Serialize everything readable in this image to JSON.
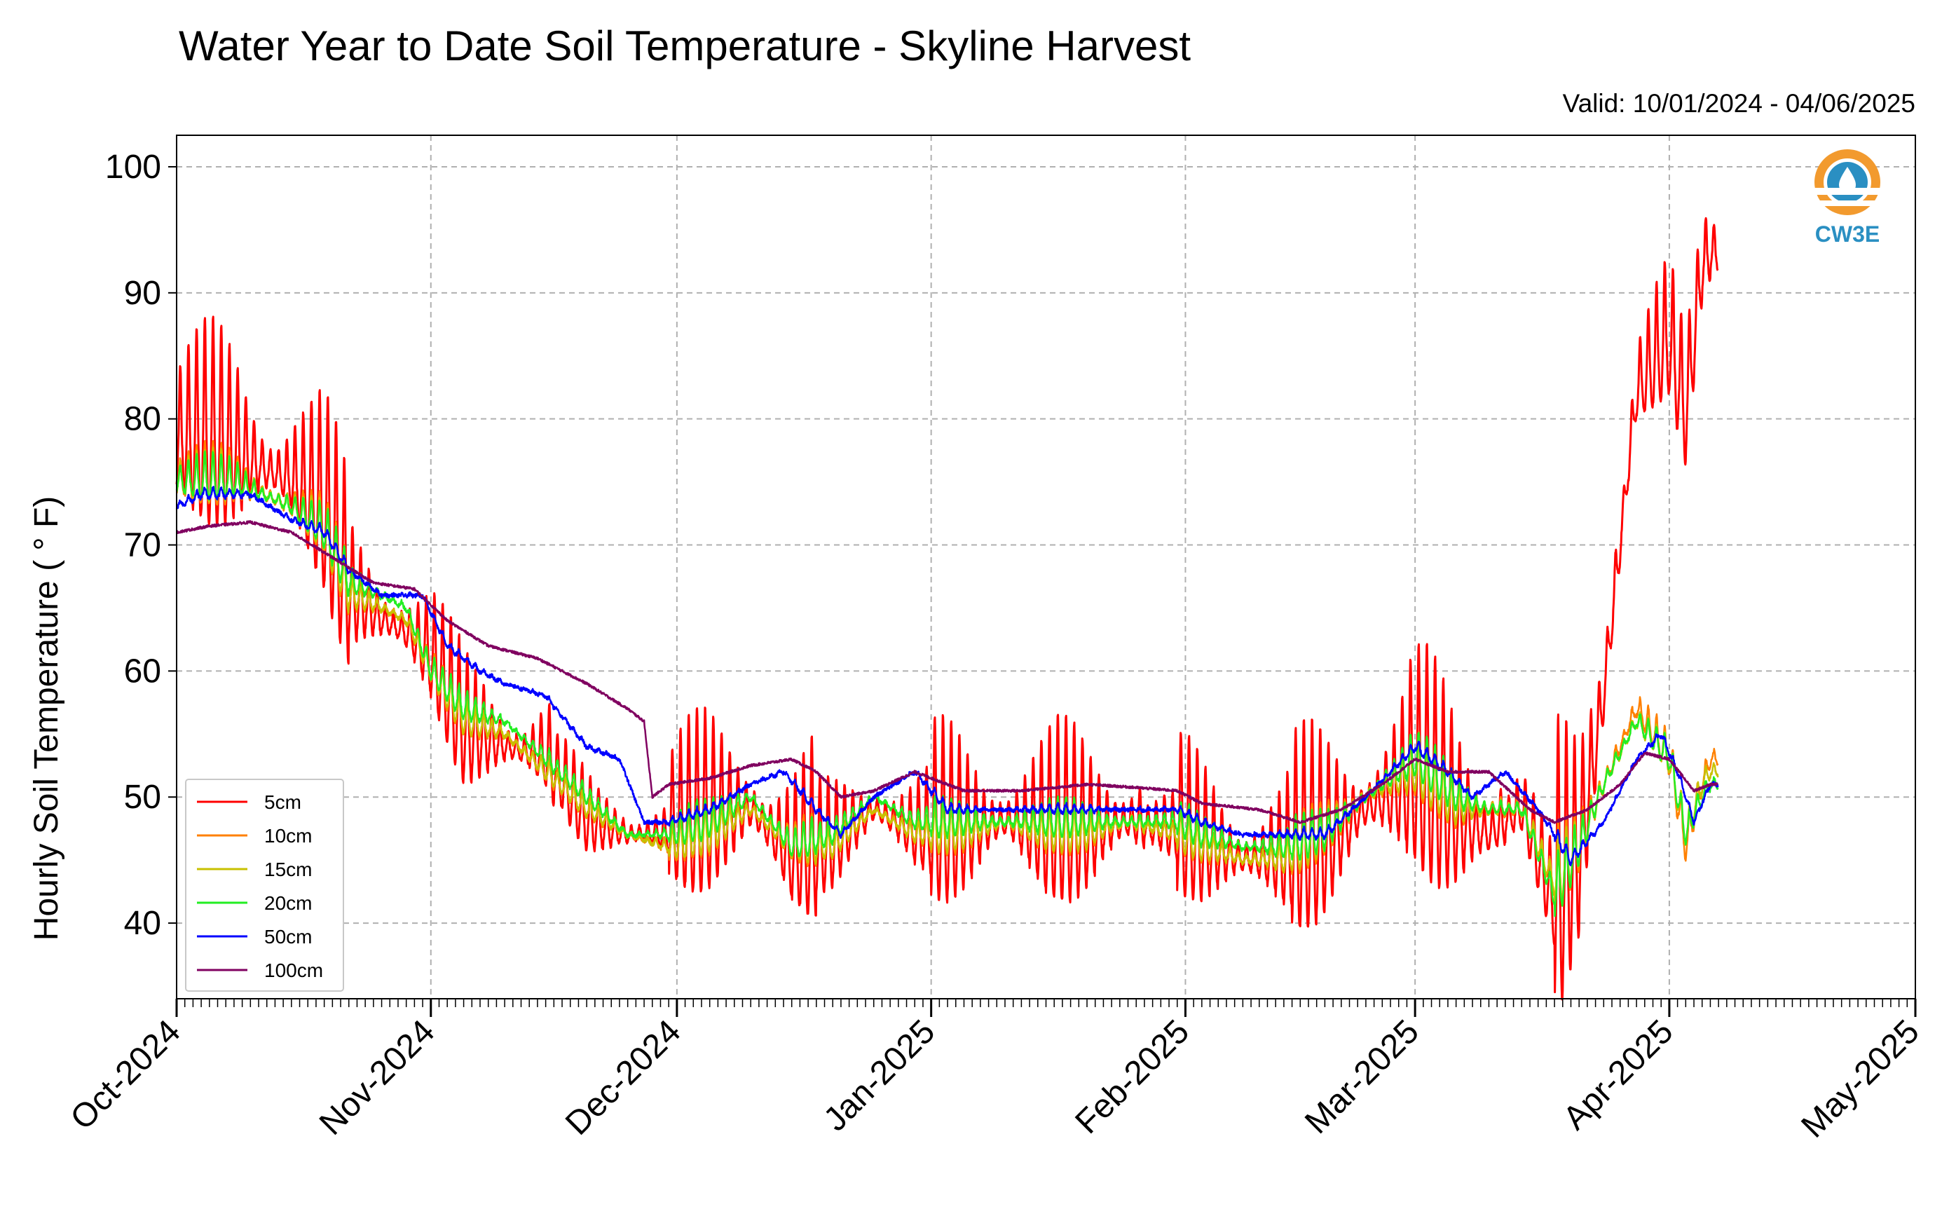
{
  "chart_data": {
    "type": "line",
    "title": "Water Year to Date Soil Temperature - Skyline Harvest",
    "subtitle": "Valid: 10/01/2024 - 04/06/2025",
    "xlabel": "",
    "ylabel": "Hourly Soil Temperature ( ° F)",
    "ylim": [
      34,
      102.5
    ],
    "yticks": [
      40,
      50,
      60,
      70,
      80,
      90,
      100
    ],
    "xlim": [
      "2024-10-01",
      "2025-05-01"
    ],
    "xticks": [
      {
        "date": "2024-10-01",
        "label": "Oct-2024"
      },
      {
        "date": "2024-11-01",
        "label": "Nov-2024"
      },
      {
        "date": "2024-12-01",
        "label": "Dec-2024"
      },
      {
        "date": "2025-01-01",
        "label": "Jan-2025"
      },
      {
        "date": "2025-02-01",
        "label": "Feb-2025"
      },
      {
        "date": "2025-03-01",
        "label": "Mar-2025"
      },
      {
        "date": "2025-04-01",
        "label": "Apr-2025"
      },
      {
        "date": "2025-05-01",
        "label": "May-2025"
      }
    ],
    "grid": true,
    "legend_position": "bottom-left",
    "logo_text": "CW3E",
    "series": [
      {
        "name": "5cm",
        "color": "#ff0000",
        "points": [
          [
            "2024-10-01",
            78
          ],
          [
            "2024-10-08",
            77
          ],
          [
            "2024-10-15",
            75
          ],
          [
            "2024-10-19",
            72
          ],
          [
            "2024-10-22",
            66
          ],
          [
            "2024-10-26",
            64
          ],
          [
            "2024-10-29",
            63
          ],
          [
            "2024-11-01",
            61
          ],
          [
            "2024-11-05",
            55
          ],
          [
            "2024-11-10",
            54
          ],
          [
            "2024-11-15",
            53
          ],
          [
            "2024-11-20",
            48
          ],
          [
            "2024-11-25",
            47
          ],
          [
            "2024-11-30",
            47
          ],
          [
            "2024-12-05",
            48
          ],
          [
            "2024-12-10",
            49
          ],
          [
            "2024-12-15",
            45
          ],
          [
            "2024-12-20",
            46
          ],
          [
            "2024-12-25",
            49
          ],
          [
            "2024-12-30",
            47
          ],
          [
            "2025-01-05",
            47
          ],
          [
            "2025-01-10",
            48
          ],
          [
            "2025-01-15",
            47
          ],
          [
            "2025-01-20",
            47
          ],
          [
            "2025-01-25",
            48
          ],
          [
            "2025-01-31",
            47
          ],
          [
            "2025-02-03",
            46
          ],
          [
            "2025-02-08",
            45
          ],
          [
            "2025-02-13",
            45
          ],
          [
            "2025-02-18",
            46
          ],
          [
            "2025-02-23",
            49
          ],
          [
            "2025-03-01",
            51
          ],
          [
            "2025-03-06",
            48
          ],
          [
            "2025-03-10",
            47
          ],
          [
            "2025-03-14",
            49
          ],
          [
            "2025-03-18",
            41
          ],
          [
            "2025-03-21",
            45
          ],
          [
            "2025-03-24",
            58
          ],
          [
            "2025-03-28",
            82
          ],
          [
            "2025-04-01",
            86
          ],
          [
            "2025-04-03",
            80
          ],
          [
            "2025-04-05",
            92
          ],
          [
            "2025-04-06",
            93
          ]
        ]
      },
      {
        "name": "10cm",
        "color": "#ff8000",
        "points": [
          [
            "2024-10-01",
            75
          ],
          [
            "2024-10-08",
            75
          ],
          [
            "2024-10-15",
            73
          ],
          [
            "2024-10-19",
            71
          ],
          [
            "2024-10-22",
            66
          ],
          [
            "2024-10-26",
            65
          ],
          [
            "2024-10-29",
            64
          ],
          [
            "2024-11-01",
            60
          ],
          [
            "2024-11-05",
            56
          ],
          [
            "2024-11-10",
            55
          ],
          [
            "2024-11-15",
            52
          ],
          [
            "2024-11-20",
            49
          ],
          [
            "2024-11-25",
            47
          ],
          [
            "2024-11-30",
            46
          ],
          [
            "2024-12-05",
            47
          ],
          [
            "2024-12-10",
            49
          ],
          [
            "2024-12-15",
            46
          ],
          [
            "2024-12-20",
            46
          ],
          [
            "2024-12-25",
            49
          ],
          [
            "2024-12-30",
            47
          ],
          [
            "2025-01-05",
            47
          ],
          [
            "2025-01-10",
            48
          ],
          [
            "2025-01-15",
            47
          ],
          [
            "2025-01-20",
            47
          ],
          [
            "2025-01-25",
            48
          ],
          [
            "2025-01-31",
            47
          ],
          [
            "2025-02-03",
            46
          ],
          [
            "2025-02-08",
            45
          ],
          [
            "2025-02-13",
            45
          ],
          [
            "2025-02-18",
            47
          ],
          [
            "2025-02-23",
            50
          ],
          [
            "2025-03-01",
            52
          ],
          [
            "2025-03-06",
            49
          ],
          [
            "2025-03-10",
            49
          ],
          [
            "2025-03-14",
            49
          ],
          [
            "2025-03-18",
            43
          ],
          [
            "2025-03-21",
            46
          ],
          [
            "2025-03-24",
            51
          ],
          [
            "2025-03-28",
            57
          ],
          [
            "2025-04-01",
            53
          ],
          [
            "2025-04-03",
            46
          ],
          [
            "2025-04-05",
            51
          ],
          [
            "2025-04-06",
            53
          ]
        ]
      },
      {
        "name": "15cm",
        "color": "#c8c000",
        "points": [
          [
            "2024-10-01",
            75
          ],
          [
            "2024-10-08",
            75
          ],
          [
            "2024-10-15",
            73
          ],
          [
            "2024-10-19",
            71
          ],
          [
            "2024-10-22",
            66
          ],
          [
            "2024-10-26",
            65
          ],
          [
            "2024-10-29",
            64
          ],
          [
            "2024-11-01",
            60
          ],
          [
            "2024-11-05",
            56
          ],
          [
            "2024-11-10",
            55
          ],
          [
            "2024-11-15",
            52
          ],
          [
            "2024-11-20",
            49
          ],
          [
            "2024-11-25",
            47
          ],
          [
            "2024-11-30",
            46
          ],
          [
            "2024-12-05",
            47
          ],
          [
            "2024-12-10",
            49
          ],
          [
            "2024-12-15",
            46
          ],
          [
            "2024-12-20",
            46
          ],
          [
            "2024-12-25",
            49
          ],
          [
            "2024-12-30",
            47
          ],
          [
            "2025-01-05",
            47
          ],
          [
            "2025-01-10",
            48
          ],
          [
            "2025-01-15",
            47
          ],
          [
            "2025-01-20",
            47
          ],
          [
            "2025-01-25",
            48
          ],
          [
            "2025-01-31",
            47
          ],
          [
            "2025-02-03",
            46
          ],
          [
            "2025-02-08",
            45
          ],
          [
            "2025-02-13",
            45
          ],
          [
            "2025-02-18",
            47
          ],
          [
            "2025-02-23",
            50
          ],
          [
            "2025-03-01",
            52
          ],
          [
            "2025-03-06",
            49
          ],
          [
            "2025-03-10",
            49
          ],
          [
            "2025-03-14",
            49
          ],
          [
            "2025-03-18",
            43
          ],
          [
            "2025-03-21",
            46
          ],
          [
            "2025-03-24",
            51
          ],
          [
            "2025-03-28",
            56
          ],
          [
            "2025-04-01",
            53
          ],
          [
            "2025-04-03",
            47
          ],
          [
            "2025-04-05",
            51
          ],
          [
            "2025-04-06",
            52
          ]
        ]
      },
      {
        "name": "20cm",
        "color": "#22ee22",
        "points": [
          [
            "2024-10-01",
            75
          ],
          [
            "2024-10-08",
            75
          ],
          [
            "2024-10-15",
            73
          ],
          [
            "2024-10-19",
            71
          ],
          [
            "2024-10-22",
            67
          ],
          [
            "2024-10-26",
            66
          ],
          [
            "2024-10-29",
            65
          ],
          [
            "2024-11-01",
            60
          ],
          [
            "2024-11-05",
            57
          ],
          [
            "2024-11-10",
            56
          ],
          [
            "2024-11-15",
            53
          ],
          [
            "2024-11-20",
            50
          ],
          [
            "2024-11-25",
            47
          ],
          [
            "2024-11-30",
            47
          ],
          [
            "2024-12-05",
            48
          ],
          [
            "2024-12-10",
            50
          ],
          [
            "2024-12-15",
            46
          ],
          [
            "2024-12-20",
            47
          ],
          [
            "2024-12-25",
            50
          ],
          [
            "2024-12-30",
            48
          ],
          [
            "2025-01-05",
            48
          ],
          [
            "2025-01-10",
            48
          ],
          [
            "2025-01-15",
            48
          ],
          [
            "2025-01-20",
            48
          ],
          [
            "2025-01-25",
            48
          ],
          [
            "2025-01-31",
            48
          ],
          [
            "2025-02-03",
            47
          ],
          [
            "2025-02-08",
            46
          ],
          [
            "2025-02-13",
            46
          ],
          [
            "2025-02-18",
            47
          ],
          [
            "2025-02-23",
            50
          ],
          [
            "2025-03-01",
            53
          ],
          [
            "2025-03-06",
            50
          ],
          [
            "2025-03-10",
            49
          ],
          [
            "2025-03-14",
            49
          ],
          [
            "2025-03-18",
            42
          ],
          [
            "2025-03-21",
            46
          ],
          [
            "2025-03-24",
            51
          ],
          [
            "2025-03-28",
            56
          ],
          [
            "2025-04-01",
            53
          ],
          [
            "2025-04-03",
            47
          ],
          [
            "2025-04-05",
            50
          ],
          [
            "2025-04-06",
            51
          ]
        ]
      },
      {
        "name": "50cm",
        "color": "#0000ff",
        "points": [
          [
            "2024-10-01",
            73
          ],
          [
            "2024-10-04",
            74
          ],
          [
            "2024-10-10",
            74
          ],
          [
            "2024-10-15",
            72
          ],
          [
            "2024-10-19",
            71
          ],
          [
            "2024-10-22",
            68
          ],
          [
            "2024-10-26",
            66
          ],
          [
            "2024-10-31",
            66
          ],
          [
            "2024-11-03",
            62
          ],
          [
            "2024-11-07",
            60
          ],
          [
            "2024-11-10",
            59
          ],
          [
            "2024-11-15",
            58
          ],
          [
            "2024-11-20",
            54
          ],
          [
            "2024-11-24",
            53
          ],
          [
            "2024-11-27",
            48
          ],
          [
            "2024-11-30",
            48
          ],
          [
            "2024-12-05",
            49
          ],
          [
            "2024-12-10",
            51
          ],
          [
            "2024-12-14",
            52
          ],
          [
            "2024-12-18",
            49
          ],
          [
            "2024-12-21",
            47
          ],
          [
            "2024-12-25",
            50
          ],
          [
            "2024-12-30",
            52
          ],
          [
            "2025-01-03",
            49
          ],
          [
            "2025-01-08",
            49
          ],
          [
            "2025-01-15",
            49
          ],
          [
            "2025-01-20",
            49
          ],
          [
            "2025-01-25",
            49
          ],
          [
            "2025-01-31",
            49
          ],
          [
            "2025-02-03",
            48
          ],
          [
            "2025-02-08",
            47
          ],
          [
            "2025-02-13",
            47
          ],
          [
            "2025-02-18",
            47
          ],
          [
            "2025-02-23",
            50
          ],
          [
            "2025-03-01",
            54
          ],
          [
            "2025-03-05",
            52
          ],
          [
            "2025-03-08",
            50
          ],
          [
            "2025-03-12",
            52
          ],
          [
            "2025-03-16",
            49
          ],
          [
            "2025-03-20",
            45
          ],
          [
            "2025-03-24",
            48
          ],
          [
            "2025-03-28",
            53
          ],
          [
            "2025-03-31",
            55
          ],
          [
            "2025-04-02",
            52
          ],
          [
            "2025-04-04",
            48
          ],
          [
            "2025-04-06",
            51
          ]
        ]
      },
      {
        "name": "100cm",
        "color": "#800060",
        "points": [
          [
            "2024-10-01",
            71
          ],
          [
            "2024-10-05",
            71.5
          ],
          [
            "2024-10-10",
            71.8
          ],
          [
            "2024-10-15",
            71
          ],
          [
            "2024-10-20",
            69
          ],
          [
            "2024-10-25",
            67
          ],
          [
            "2024-10-30",
            66.5
          ],
          [
            "2024-11-03",
            64
          ],
          [
            "2024-11-08",
            62
          ],
          [
            "2024-11-14",
            61
          ],
          [
            "2024-11-20",
            59
          ],
          [
            "2024-11-25",
            57
          ],
          [
            "2024-11-27",
            56
          ],
          [
            "2024-11-28",
            50
          ],
          [
            "2024-11-30",
            51
          ],
          [
            "2024-12-05",
            51.5
          ],
          [
            "2024-12-10",
            52.5
          ],
          [
            "2024-12-15",
            53
          ],
          [
            "2024-12-18",
            52
          ],
          [
            "2024-12-21",
            50
          ],
          [
            "2024-12-25",
            50.5
          ],
          [
            "2024-12-30",
            52
          ],
          [
            "2025-01-05",
            50.5
          ],
          [
            "2025-01-12",
            50.5
          ],
          [
            "2025-01-20",
            51
          ],
          [
            "2025-01-25",
            50.8
          ],
          [
            "2025-01-31",
            50.5
          ],
          [
            "2025-02-03",
            49.5
          ],
          [
            "2025-02-10",
            49
          ],
          [
            "2025-02-15",
            48
          ],
          [
            "2025-02-20",
            49
          ],
          [
            "2025-02-25",
            51
          ],
          [
            "2025-03-01",
            53
          ],
          [
            "2025-03-05",
            52
          ],
          [
            "2025-03-10",
            52
          ],
          [
            "2025-03-15",
            49
          ],
          [
            "2025-03-18",
            48
          ],
          [
            "2025-03-22",
            49
          ],
          [
            "2025-03-26",
            51
          ],
          [
            "2025-03-29",
            53.5
          ],
          [
            "2025-04-01",
            53
          ],
          [
            "2025-04-04",
            50.5
          ],
          [
            "2025-04-06",
            51
          ]
        ]
      }
    ]
  }
}
